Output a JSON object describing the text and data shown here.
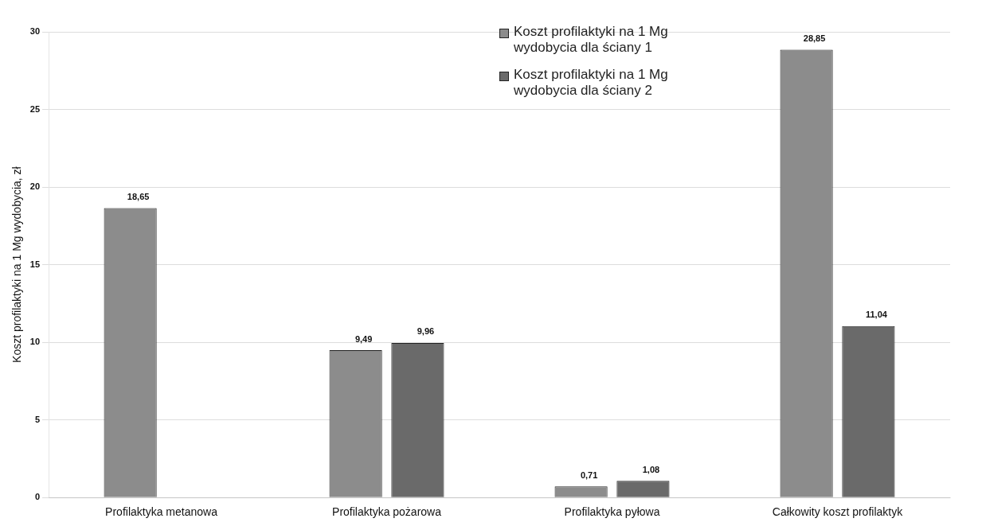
{
  "chart_data": {
    "type": "bar",
    "ylabel": "Koszt profilaktyki na 1 Mg wydobycia, zł",
    "categories": [
      "Profilaktyka metanowa",
      "Profilaktyka pożarowa",
      "Profilaktyka pyłowa",
      "Całkowity koszt profilaktyk"
    ],
    "series": [
      {
        "name": "Koszt profilaktyki na 1 Mg wydobycia dla ściany 1",
        "color": "#8c8c8c",
        "values": [
          18.65,
          9.49,
          0.71,
          28.85
        ],
        "value_labels": [
          "18,65",
          "9,49",
          "0,71",
          "28,85"
        ]
      },
      {
        "name": "Koszt profilaktyki na 1 Mg wydobycia dla ściany 2",
        "color": "#6a6a6a",
        "values": [
          0,
          9.96,
          1.08,
          11.04
        ],
        "value_labels": [
          null,
          "9,96",
          "1,08",
          "11,04"
        ]
      }
    ],
    "ylim": [
      0,
      30
    ],
    "yticks": [
      0,
      5,
      10,
      15,
      20,
      25,
      30
    ],
    "grid": "y",
    "legend": "top right"
  }
}
